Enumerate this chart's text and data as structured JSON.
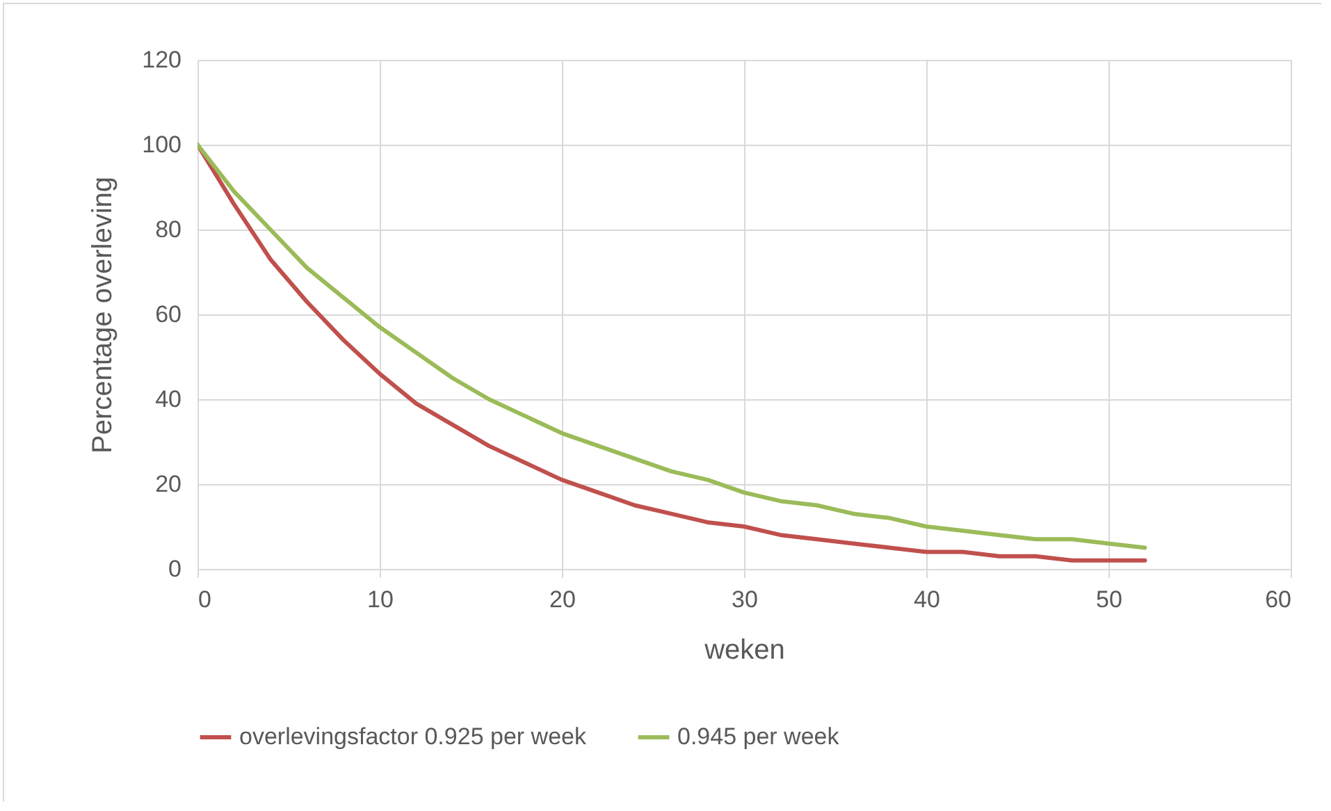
{
  "chart_data": {
    "type": "line",
    "xlabel": "weken",
    "ylabel": "Percentage overleving",
    "x": [
      0,
      2,
      4,
      6,
      8,
      10,
      12,
      14,
      16,
      18,
      20,
      22,
      24,
      26,
      28,
      30,
      32,
      34,
      36,
      38,
      40,
      42,
      44,
      46,
      48,
      50,
      52
    ],
    "series": [
      {
        "name": "overlevingsfactor 0.925 per week",
        "color": "#c0504d",
        "values": [
          100,
          86,
          73,
          63,
          54,
          46,
          39,
          34,
          29,
          25,
          21,
          18,
          15,
          13,
          11,
          10,
          8,
          7,
          6,
          5,
          4,
          4,
          3,
          3,
          2,
          2,
          2
        ]
      },
      {
        "name": "0.945 per week",
        "color": "#9bbb59",
        "values": [
          100,
          89,
          80,
          71,
          64,
          57,
          51,
          45,
          40,
          36,
          32,
          29,
          26,
          23,
          21,
          18,
          16,
          15,
          13,
          12,
          10,
          9,
          8,
          7,
          7,
          6,
          5
        ]
      }
    ],
    "xlim": [
      0,
      60
    ],
    "xticks": [
      0,
      10,
      20,
      30,
      40,
      50,
      60
    ],
    "ylim": [
      0,
      120
    ],
    "yticks": [
      0,
      20,
      40,
      60,
      80,
      100,
      120
    ],
    "grid": true,
    "legend": "bottom",
    "line_style": "solid"
  }
}
